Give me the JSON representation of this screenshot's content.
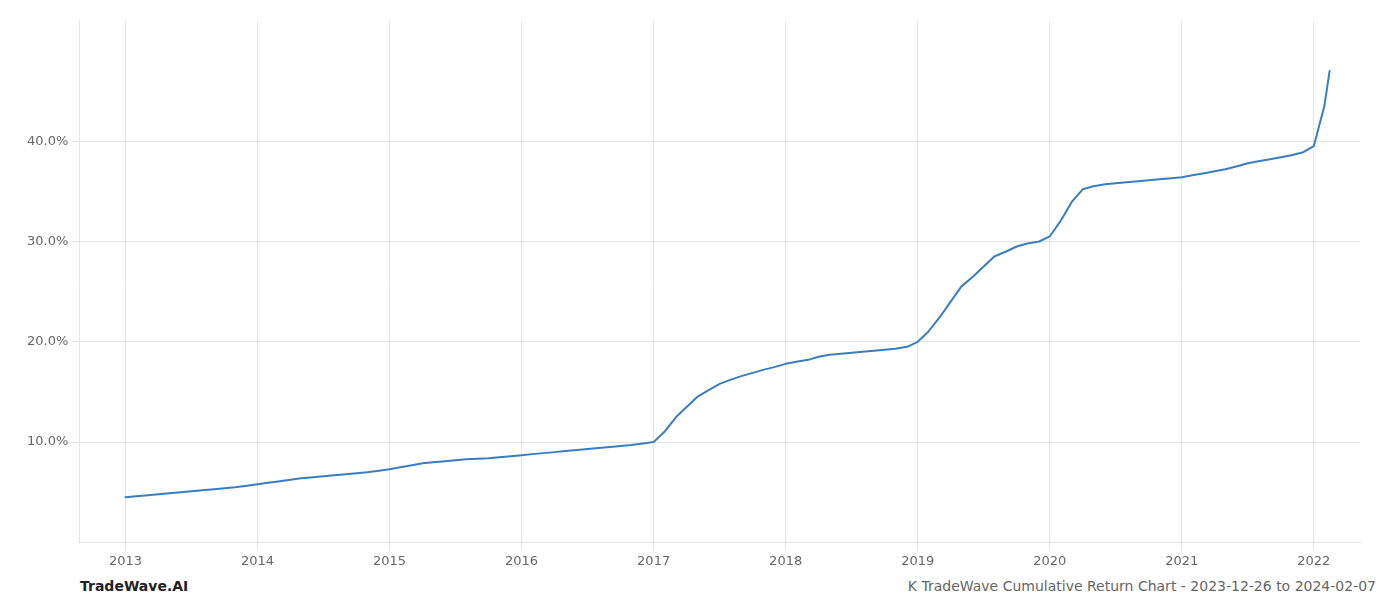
{
  "chart_data": {
    "type": "line",
    "title": "K TradeWave Cumulative Return Chart - 2023-12-26 to 2024-02-07",
    "annotations": [
      "TradeWave.AI"
    ],
    "color": "#3a7ebf",
    "x": [
      2013.0,
      2013.08,
      2013.17,
      2013.25,
      2013.33,
      2013.42,
      2013.5,
      2013.58,
      2013.67,
      2013.75,
      2013.83,
      2013.92,
      2014.0,
      2014.08,
      2014.17,
      2014.25,
      2014.33,
      2014.42,
      2014.5,
      2014.58,
      2014.67,
      2014.75,
      2014.83,
      2014.92,
      2015.0,
      2015.08,
      2015.17,
      2015.25,
      2015.33,
      2015.42,
      2015.5,
      2015.58,
      2015.67,
      2015.75,
      2015.83,
      2015.92,
      2016.0,
      2016.08,
      2016.17,
      2016.25,
      2016.33,
      2016.42,
      2016.5,
      2016.58,
      2016.67,
      2016.75,
      2016.83,
      2016.92,
      2017.0,
      2017.08,
      2017.17,
      2017.25,
      2017.33,
      2017.42,
      2017.5,
      2017.58,
      2017.67,
      2017.75,
      2017.83,
      2017.92,
      2018.0,
      2018.08,
      2018.17,
      2018.25,
      2018.33,
      2018.42,
      2018.5,
      2018.58,
      2018.67,
      2018.75,
      2018.83,
      2018.92,
      2019.0,
      2019.08,
      2019.17,
      2019.25,
      2019.33,
      2019.42,
      2019.5,
      2019.58,
      2019.67,
      2019.75,
      2019.83,
      2019.92,
      2020.0,
      2020.08,
      2020.17,
      2020.25,
      2020.33,
      2020.42,
      2020.5,
      2020.58,
      2020.67,
      2020.75,
      2020.83,
      2020.92,
      2021.0,
      2021.08,
      2021.17,
      2021.25,
      2021.33,
      2021.42,
      2021.5,
      2021.58,
      2021.67,
      2021.75,
      2021.83,
      2021.92,
      2022.0,
      2022.08,
      2022.12
    ],
    "values": [
      4.5,
      4.6,
      4.7,
      4.8,
      4.9,
      5.0,
      5.1,
      5.2,
      5.3,
      5.4,
      5.5,
      5.65,
      5.8,
      5.95,
      6.1,
      6.25,
      6.4,
      6.5,
      6.6,
      6.7,
      6.8,
      6.9,
      7.0,
      7.15,
      7.3,
      7.5,
      7.7,
      7.9,
      8.0,
      8.1,
      8.2,
      8.3,
      8.35,
      8.4,
      8.5,
      8.6,
      8.7,
      8.8,
      8.9,
      9.0,
      9.1,
      9.2,
      9.3,
      9.4,
      9.5,
      9.6,
      9.7,
      9.85,
      10.0,
      11.0,
      12.5,
      13.5,
      14.5,
      15.2,
      15.8,
      16.2,
      16.6,
      16.9,
      17.2,
      17.5,
      17.8,
      18.0,
      18.2,
      18.5,
      18.7,
      18.8,
      18.9,
      19.0,
      19.1,
      19.2,
      19.3,
      19.5,
      20.0,
      21.0,
      22.5,
      24.0,
      25.5,
      26.5,
      27.5,
      28.5,
      29.0,
      29.5,
      29.8,
      30.0,
      30.5,
      32.0,
      34.0,
      35.2,
      35.5,
      35.7,
      35.8,
      35.9,
      36.0,
      36.1,
      36.2,
      36.3,
      36.4,
      36.6,
      36.8,
      37.0,
      37.2,
      37.5,
      37.8,
      38.0,
      38.2,
      38.4,
      38.6,
      38.9,
      39.5,
      43.5,
      47.0
    ],
    "xlim": [
      2012.65,
      2022.35
    ],
    "ylim": [
      0,
      52
    ],
    "xticks": [
      2013,
      2014,
      2015,
      2016,
      2017,
      2018,
      2019,
      2020,
      2021,
      2022
    ],
    "yticks": [
      {
        "value": 10.0,
        "label": "10.0%"
      },
      {
        "value": 20.0,
        "label": "20.0%"
      },
      {
        "value": 30.0,
        "label": "30.0%"
      },
      {
        "value": 40.0,
        "label": "40.0%"
      }
    ],
    "grid": true
  }
}
